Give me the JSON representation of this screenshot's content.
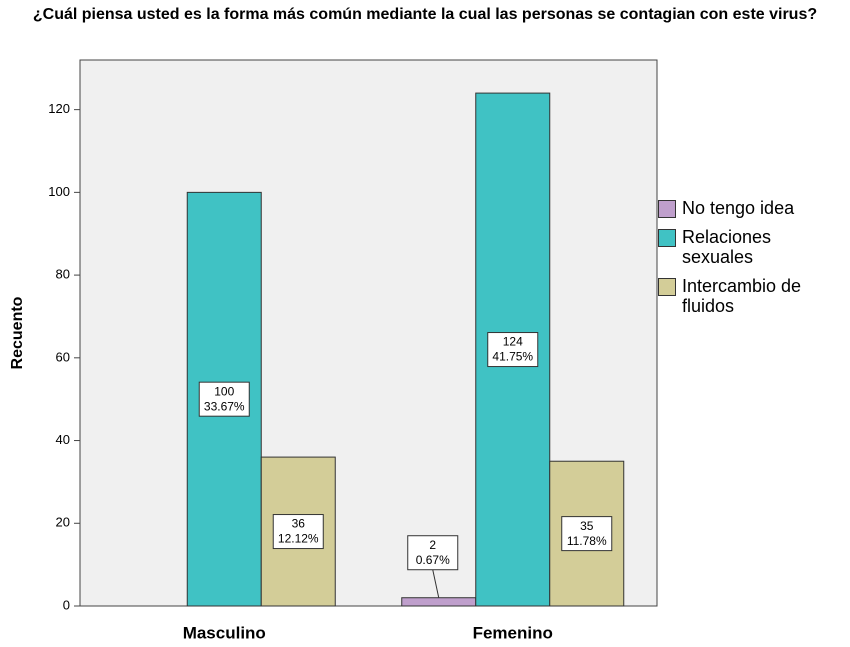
{
  "chart_data": {
    "type": "bar",
    "title": "¿Cuál piensa usted es la forma más común mediante la cual las personas se contagian con este virus?",
    "ylabel": "Recuento",
    "categories": [
      "Masculino",
      "Femenino"
    ],
    "series": [
      {
        "name": "No tengo idea",
        "color": "#bf9fcc",
        "values": [
          null,
          2
        ],
        "percent_labels": [
          null,
          "0.67%"
        ]
      },
      {
        "name": "Relaciones sexuales",
        "color": "#40c2c4",
        "values": [
          100,
          124
        ],
        "percent_labels": [
          "33.67%",
          "41.75%"
        ]
      },
      {
        "name": "Intercambio de fluidos",
        "color": "#d3cd98",
        "values": [
          36,
          35
        ],
        "percent_labels": [
          "12.12%",
          "11.78%"
        ]
      }
    ],
    "ylim": [
      0,
      132
    ],
    "yticks": [
      0,
      20,
      40,
      60,
      80,
      100,
      120
    ],
    "legend": "right"
  }
}
